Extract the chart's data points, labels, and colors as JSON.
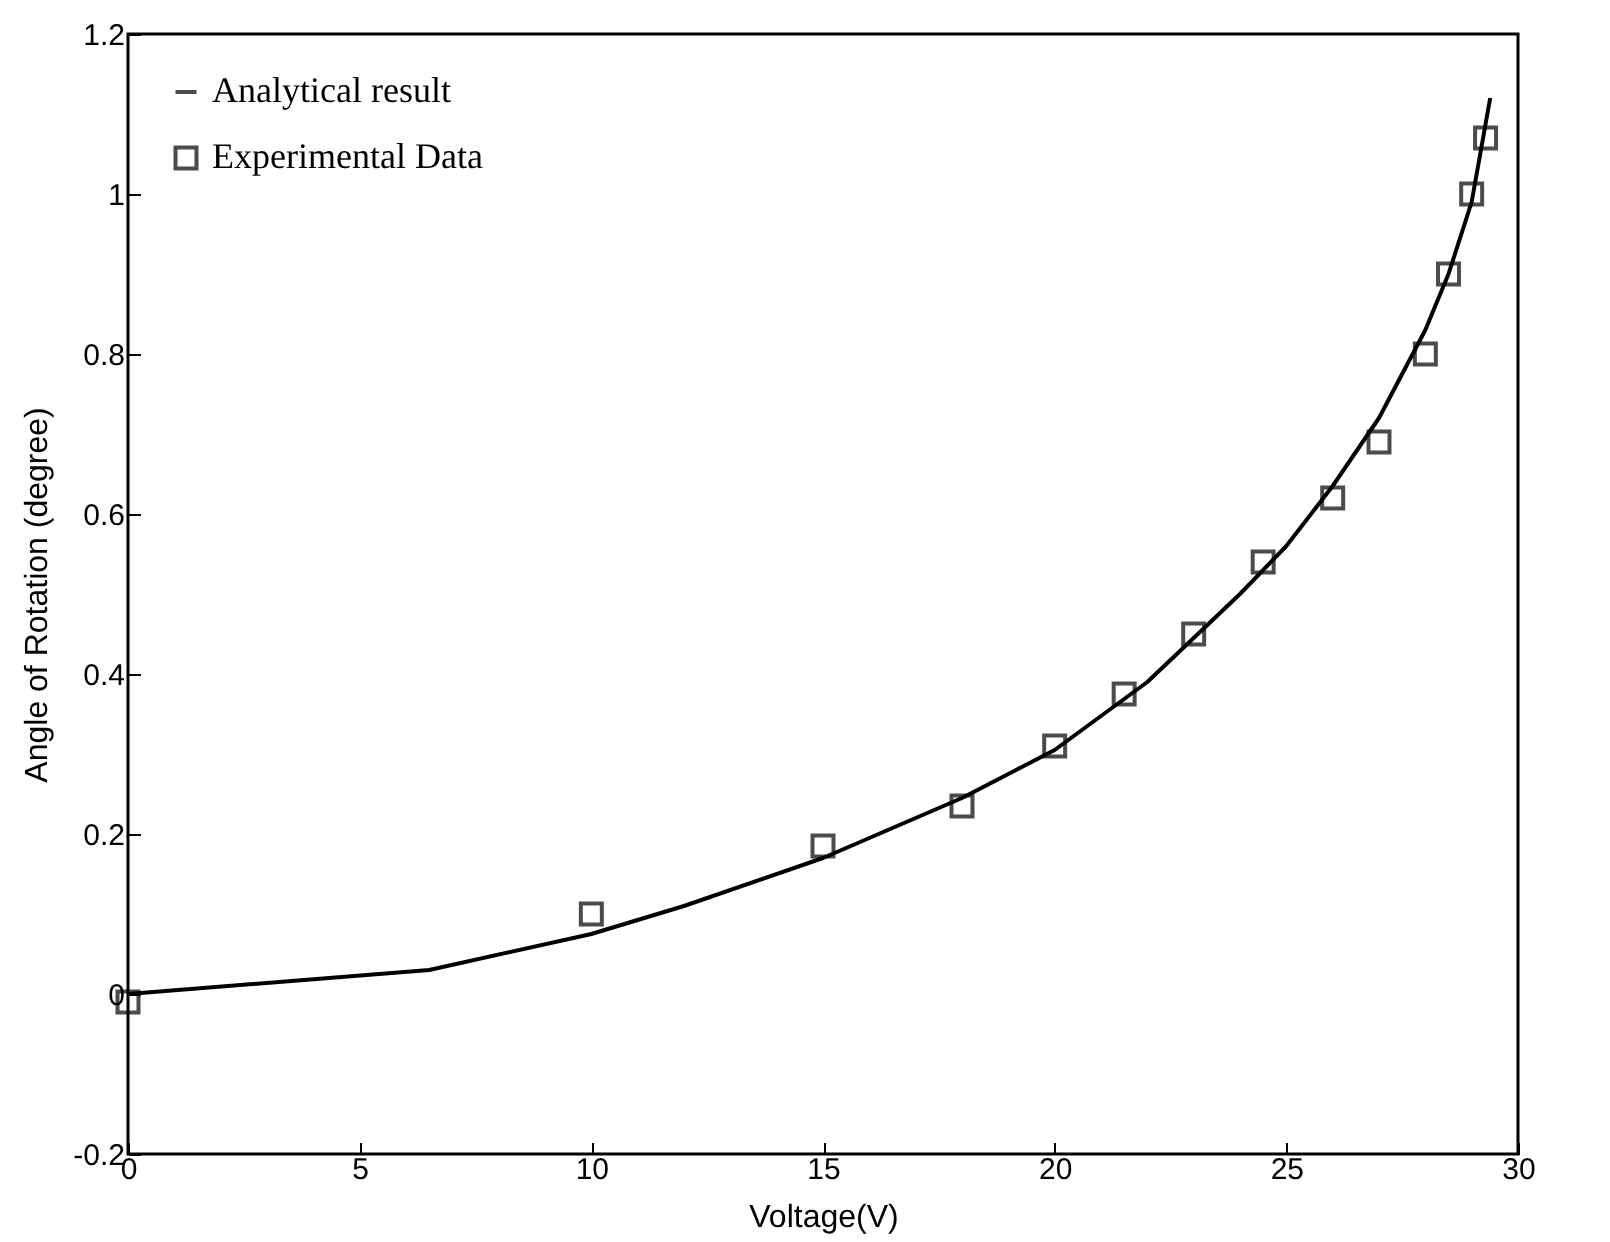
{
  "chart_data": {
    "type": "line",
    "xlabel": "Voltage(V)",
    "ylabel": "Angle of Rotation (degree)",
    "xlim": [
      0,
      30
    ],
    "ylim": [
      -0.2,
      1.2
    ],
    "xticks": [
      0,
      5,
      10,
      15,
      20,
      25,
      30
    ],
    "yticks": [
      -0.2,
      0,
      0.2,
      0.4,
      0.6,
      0.8,
      1,
      1.2
    ],
    "grid": false,
    "legend": "top left",
    "series": [
      {
        "name": "Analytical result",
        "color": "#000000",
        "line_style": "solid",
        "x": [
          0,
          6.5,
          10,
          12,
          15,
          18,
          20,
          22,
          24,
          25,
          26,
          27,
          28,
          28.5,
          29,
          29.4
        ],
        "values": [
          0,
          0.03,
          0.075,
          0.11,
          0.17,
          0.245,
          0.305,
          0.39,
          0.5,
          0.56,
          0.635,
          0.72,
          0.83,
          0.9,
          0.99,
          1.12
        ]
      },
      {
        "name": "Experimental Data",
        "type": "scatter",
        "color": "#000000",
        "marker": "square",
        "x": [
          0,
          10,
          15,
          18,
          20,
          21.5,
          23,
          24.5,
          26,
          27,
          28,
          28.5,
          29,
          29.3
        ],
        "values": [
          -0.01,
          0.1,
          0.185,
          0.235,
          0.31,
          0.375,
          0.45,
          0.54,
          0.62,
          0.69,
          0.8,
          0.9,
          1,
          1.07
        ]
      }
    ]
  }
}
